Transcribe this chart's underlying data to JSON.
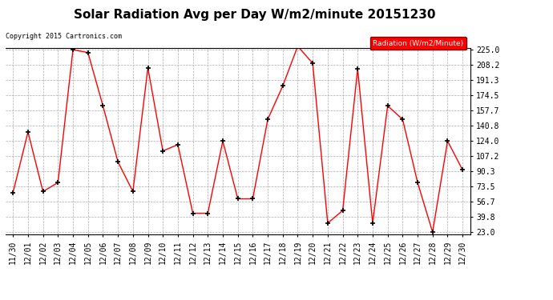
{
  "title": "Solar Radiation Avg per Day W/m2/minute 20151230",
  "copyright": "Copyright 2015 Cartronics.com",
  "legend_label": "Radiation (W/m2/Minute)",
  "x_labels": [
    "11/30",
    "12/01",
    "12/02",
    "12/03",
    "12/04",
    "12/05",
    "12/06",
    "12/07",
    "12/08",
    "12/09",
    "12/10",
    "12/11",
    "12/12",
    "12/13",
    "12/14",
    "12/15",
    "12/16",
    "12/17",
    "12/18",
    "12/19",
    "12/20",
    "12/21",
    "12/22",
    "12/23",
    "12/24",
    "12/25",
    "12/26",
    "12/27",
    "12/28",
    "12/29",
    "12/30"
  ],
  "y_values": [
    67.0,
    134.0,
    68.0,
    78.0,
    225.0,
    222.0,
    163.0,
    101.0,
    68.0,
    205.0,
    113.0,
    120.0,
    44.0,
    44.0,
    124.0,
    60.0,
    60.0,
    148.0,
    185.0,
    229.0,
    210.0,
    33.0,
    47.0,
    204.0,
    33.0,
    163.0,
    148.0,
    78.0,
    23.0,
    124.0,
    92.0
  ],
  "line_color": "red",
  "marker": "+",
  "marker_color": "black",
  "grid_color": "#aaaaaa",
  "bg_color": "white",
  "yticks": [
    23.0,
    39.8,
    56.7,
    73.5,
    90.3,
    107.2,
    124.0,
    140.8,
    157.7,
    174.5,
    191.3,
    208.2,
    225.0
  ],
  "ylim": [
    23.0,
    225.0
  ],
  "title_fontsize": 11,
  "tick_fontsize": 7,
  "legend_bg": "red",
  "legend_text_color": "white"
}
